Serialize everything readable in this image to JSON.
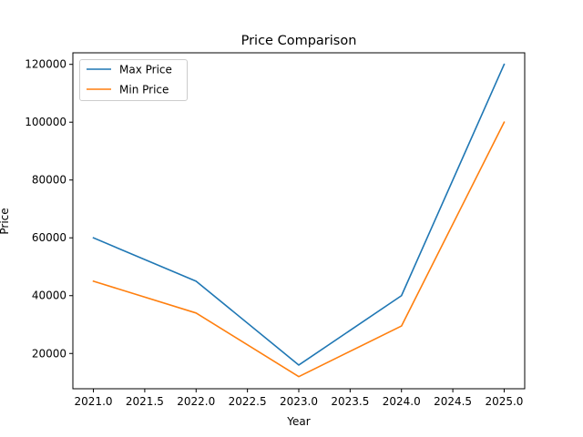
{
  "chart_data": {
    "type": "line",
    "title": "Price Comparison",
    "xlabel": "Year",
    "ylabel": "Price",
    "x": [
      2021,
      2022,
      2023,
      2024,
      2025
    ],
    "series": [
      {
        "name": "Max Price",
        "values": [
          60000,
          45000,
          16000,
          40000,
          120000
        ],
        "color": "#1f77b4"
      },
      {
        "name": "Min Price",
        "values": [
          45000,
          34000,
          12000,
          29500,
          100000
        ],
        "color": "#ff7f0e"
      }
    ],
    "xlim": [
      2020.8,
      2025.2
    ],
    "ylim": [
      7800,
      124000
    ],
    "xticks": [
      2021.0,
      2021.5,
      2022.0,
      2022.5,
      2023.0,
      2023.5,
      2024.0,
      2024.5,
      2025.0
    ],
    "xtick_labels": [
      "2021.0",
      "2021.5",
      "2022.0",
      "2022.5",
      "2023.0",
      "2023.5",
      "2024.0",
      "2024.5",
      "2025.0"
    ],
    "yticks": [
      20000,
      40000,
      60000,
      80000,
      100000,
      120000
    ],
    "ytick_labels": [
      "20000",
      "40000",
      "60000",
      "80000",
      "100000",
      "120000"
    ],
    "grid": false,
    "legend": "upper-left"
  }
}
